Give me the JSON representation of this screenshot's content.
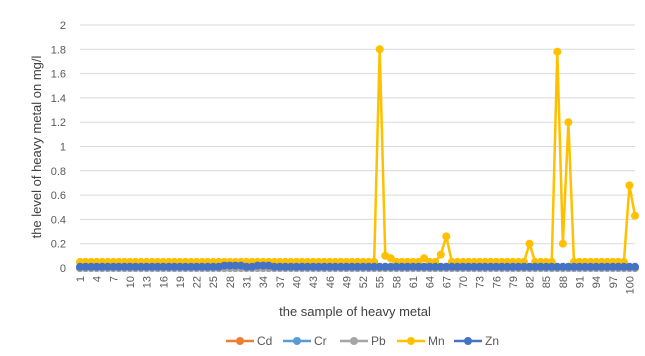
{
  "chart_data": {
    "type": "line",
    "title": "",
    "xlabel": "the sample of heavy metal",
    "ylabel": "the level of heavy metal on mg/l",
    "ylim": [
      0,
      2
    ],
    "yticks": [
      0,
      0.2,
      0.4,
      0.6,
      0.8,
      1,
      1.2,
      1.4,
      1.6,
      1.8,
      2
    ],
    "ytick_labels": [
      "0",
      "0.2",
      "0.4",
      "0.6",
      "0.8",
      "1",
      "1.2",
      "1.4",
      "1.6",
      "1.8",
      "2"
    ],
    "x": [
      1,
      2,
      3,
      4,
      5,
      6,
      7,
      8,
      9,
      10,
      11,
      12,
      13,
      14,
      15,
      16,
      17,
      18,
      19,
      20,
      21,
      22,
      23,
      24,
      25,
      26,
      27,
      28,
      29,
      30,
      31,
      32,
      33,
      34,
      35,
      36,
      37,
      38,
      39,
      40,
      41,
      42,
      43,
      44,
      45,
      46,
      47,
      48,
      49,
      50,
      51,
      52,
      53,
      54,
      55,
      56,
      57,
      58,
      59,
      60,
      61,
      62,
      63,
      64,
      65,
      66,
      67,
      68,
      69,
      70,
      71,
      72,
      73,
      74,
      75,
      76,
      77,
      78,
      79,
      80,
      81,
      82,
      83,
      84,
      85,
      86,
      87,
      88,
      89,
      90,
      91,
      92,
      93,
      94,
      95,
      96,
      97,
      98,
      99,
      100,
      101
    ],
    "xtick_labels": [
      "1",
      "4",
      "7",
      "10",
      "13",
      "16",
      "19",
      "22",
      "25",
      "28",
      "31",
      "34",
      "37",
      "40",
      "43",
      "46",
      "49",
      "52",
      "55",
      "58",
      "61",
      "64",
      "67",
      "70",
      "73",
      "76",
      "79",
      "82",
      "85",
      "88",
      "91",
      "94",
      "97",
      "100"
    ],
    "grid": "horizontal",
    "legend": "bottom",
    "series": [
      {
        "name": "Cd",
        "color": "#ED7D31",
        "values": [
          0,
          0,
          0,
          0,
          0,
          0,
          0,
          0,
          0,
          0,
          0,
          0,
          0,
          0,
          0,
          0,
          0,
          0,
          0,
          0,
          0,
          0,
          0,
          0,
          0,
          0,
          0,
          0,
          0,
          0,
          0,
          0,
          0,
          0,
          0,
          0,
          0,
          0,
          0,
          0,
          0,
          0,
          0,
          0,
          0,
          0,
          0,
          0,
          0,
          0,
          0,
          0,
          0,
          0,
          0,
          0,
          0,
          0,
          0,
          0,
          0,
          0,
          0,
          0,
          0,
          0,
          0,
          0,
          0,
          0,
          0,
          0,
          0,
          0,
          0,
          0,
          0,
          0,
          0,
          0,
          0,
          0,
          0,
          0,
          0,
          0,
          0,
          0,
          0,
          0,
          0,
          0,
          0,
          0,
          0,
          0,
          0,
          0,
          0,
          0,
          0
        ]
      },
      {
        "name": "Cr",
        "color": "#5B9BD5",
        "values": [
          0,
          0,
          0,
          0,
          0,
          0,
          0,
          0,
          0,
          0,
          0,
          0,
          0,
          0,
          0,
          0,
          0,
          0,
          0,
          0,
          0,
          0,
          0,
          0,
          0,
          0,
          0,
          0,
          0,
          0,
          0,
          0,
          0,
          0,
          0,
          0,
          0,
          0,
          0,
          0,
          0,
          0,
          0,
          0,
          0,
          0,
          0,
          0,
          0,
          0,
          0,
          0,
          0,
          0,
          0,
          0,
          0,
          0,
          0,
          0,
          0,
          0,
          0,
          0,
          0,
          0,
          0,
          0,
          0,
          0,
          0,
          0,
          0,
          0,
          0,
          0,
          0,
          0,
          0,
          0,
          0,
          0,
          0,
          0,
          0,
          0,
          0,
          0,
          0,
          0,
          0,
          0,
          0,
          0,
          0,
          0,
          0,
          0,
          0,
          0,
          0
        ]
      },
      {
        "name": "Pb",
        "color": "#A5A5A5",
        "values": [
          0,
          0,
          0,
          0,
          0,
          0,
          0,
          0,
          0,
          0,
          0,
          0,
          0,
          0,
          0,
          0,
          0,
          0,
          0,
          0,
          0,
          0,
          0,
          0,
          0,
          0,
          0,
          0,
          0,
          0,
          0,
          0,
          0,
          0,
          0,
          0,
          0,
          0,
          0,
          0,
          0,
          0,
          0,
          0,
          0,
          0,
          0,
          0,
          0,
          0,
          0,
          0,
          0,
          0,
          0,
          0,
          0,
          0,
          0,
          0,
          0,
          0,
          0,
          0,
          0,
          0,
          0,
          0,
          0,
          0,
          0,
          0,
          0,
          0,
          0,
          0,
          0,
          0,
          0,
          0,
          0,
          0,
          0,
          0,
          0,
          0,
          0,
          0,
          0,
          0,
          0,
          0,
          0,
          0,
          0,
          0,
          0,
          0,
          0,
          0,
          0
        ]
      },
      {
        "name": "Mn",
        "color": "#FFC000",
        "values": [
          0.05,
          0.05,
          0.05,
          0.05,
          0.05,
          0.05,
          0.05,
          0.05,
          0.05,
          0.05,
          0.05,
          0.05,
          0.05,
          0.05,
          0.05,
          0.05,
          0.05,
          0.05,
          0.05,
          0.05,
          0.05,
          0.05,
          0.05,
          0.05,
          0.05,
          0.05,
          0.05,
          0.05,
          0.05,
          0.05,
          0.05,
          0.05,
          0.05,
          0.05,
          0.05,
          0.05,
          0.05,
          0.05,
          0.05,
          0.05,
          0.05,
          0.05,
          0.05,
          0.05,
          0.05,
          0.05,
          0.05,
          0.05,
          0.05,
          0.05,
          0.05,
          0.05,
          0.05,
          0.05,
          1.8,
          0.1,
          0.08,
          0.05,
          0.05,
          0.05,
          0.05,
          0.05,
          0.08,
          0.05,
          0.05,
          0.11,
          0.26,
          0.05,
          0.05,
          0.05,
          0.05,
          0.05,
          0.05,
          0.05,
          0.05,
          0.05,
          0.05,
          0.05,
          0.05,
          0.05,
          0.05,
          0.2,
          0.05,
          0.05,
          0.05,
          0.05,
          1.78,
          0.2,
          1.2,
          0.05,
          0.05,
          0.05,
          0.05,
          0.05,
          0.05,
          0.05,
          0.05,
          0.05,
          0.05,
          0.68,
          0.43
        ]
      },
      {
        "name": "Zn",
        "color": "#4472C4",
        "values": [
          0.01,
          0.01,
          0.01,
          0.01,
          0.01,
          0.01,
          0.01,
          0.01,
          0.01,
          0.01,
          0.01,
          0.01,
          0.01,
          0.01,
          0.01,
          0.01,
          0.01,
          0.01,
          0.01,
          0.01,
          0.01,
          0.01,
          0.01,
          0.01,
          0.01,
          0.01,
          0.02,
          0.02,
          0.02,
          0.02,
          0.01,
          0.01,
          0.02,
          0.02,
          0.02,
          0.01,
          0.01,
          0.01,
          0.01,
          0.01,
          0.01,
          0.01,
          0.01,
          0.01,
          0.01,
          0.01,
          0.01,
          0.01,
          0.01,
          0.01,
          0.01,
          0.01,
          0.01,
          0.01,
          0.01,
          0.01,
          0.01,
          0.01,
          0.01,
          0.01,
          0.01,
          0.01,
          0.01,
          0.01,
          0.01,
          0.01,
          0.01,
          0.01,
          0.01,
          0.01,
          0.01,
          0.01,
          0.01,
          0.01,
          0.01,
          0.01,
          0.01,
          0.01,
          0.01,
          0.01,
          0.01,
          0.01,
          0.01,
          0.01,
          0.01,
          0.01,
          0.01,
          0.01,
          0.01,
          0.01,
          0.01,
          0.01,
          0.01,
          0.01,
          0.01,
          0.01,
          0.01,
          0.01,
          0.01,
          0.01,
          0.01
        ]
      }
    ]
  }
}
